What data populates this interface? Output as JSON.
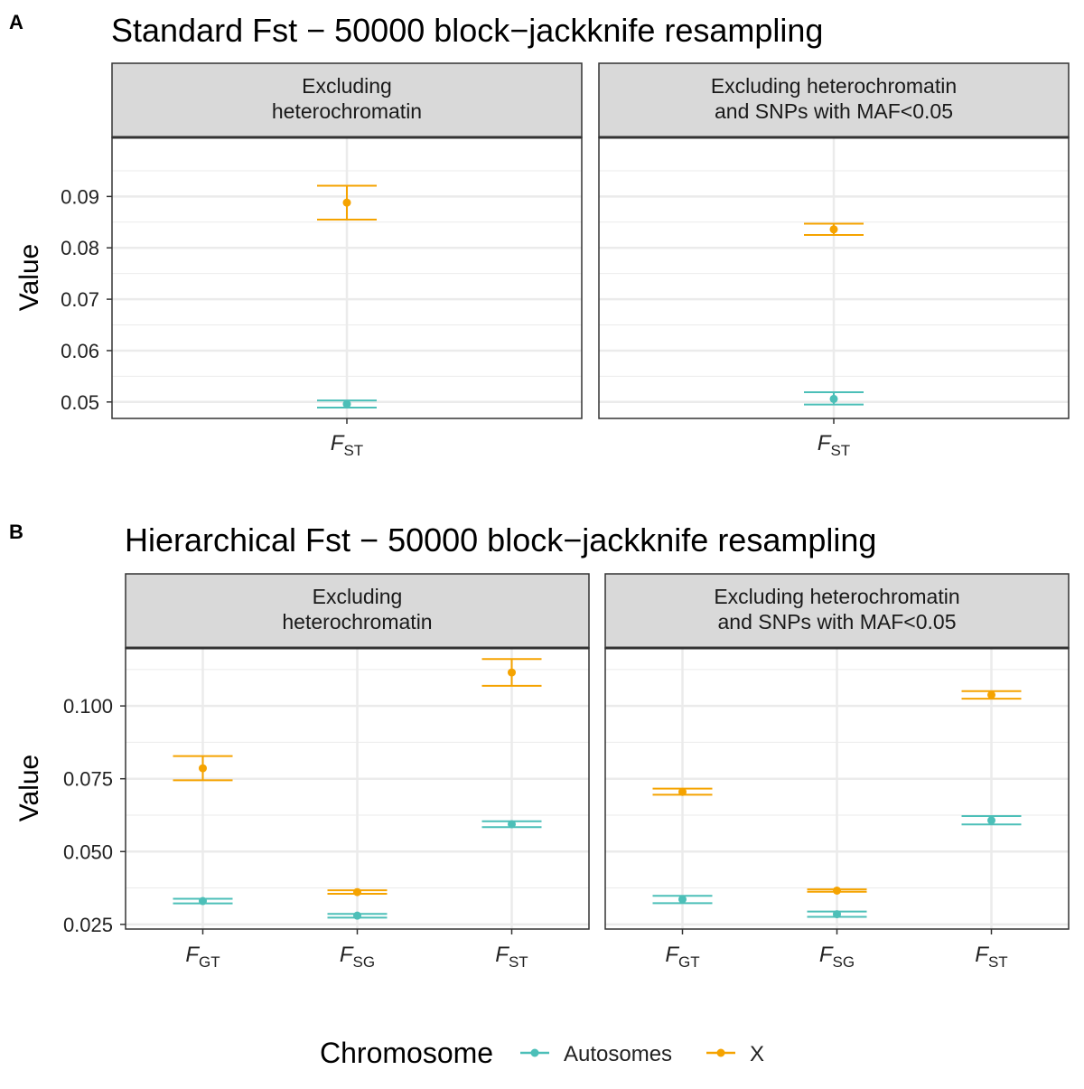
{
  "colors": {
    "autosomes": "#4cbfb8",
    "x": "#f5a300",
    "strip_bg": "#d9d9d9",
    "grid": "#ebebeb",
    "frame": "#333333"
  },
  "panels": [
    {
      "letter": "A",
      "title": "Standard Fst − 50000 block−jackknife resampling"
    },
    {
      "letter": "B",
      "title": "Hierarchical Fst − 50000 block−jackknife resampling"
    }
  ],
  "chart_data": [
    {
      "type": "scatter",
      "panel": "A",
      "title": "Standard Fst − 50000 block−jackknife resampling",
      "ylabel": "Value",
      "ylim": [
        0.0468,
        0.1015
      ],
      "yticks": [
        0.05,
        0.06,
        0.07,
        0.08,
        0.09
      ],
      "ytick_labels": [
        "0.05",
        "0.06",
        "0.07",
        "0.08",
        "0.09"
      ],
      "categories": [
        {
          "main": "F",
          "sub": "ST"
        }
      ],
      "facets": [
        {
          "label_lines": [
            "Excluding",
            "heterochromatin"
          ],
          "series": [
            {
              "name": "Autosomes",
              "values": [
                0.0496
              ],
              "lower": [
                0.0489
              ],
              "upper": [
                0.0503
              ]
            },
            {
              "name": "X",
              "values": [
                0.0888
              ],
              "lower": [
                0.0855
              ],
              "upper": [
                0.0921
              ]
            }
          ]
        },
        {
          "label_lines": [
            "Excluding heterochromatin",
            "and SNPs with MAF<0.05"
          ],
          "series": [
            {
              "name": "Autosomes",
              "values": [
                0.0506
              ],
              "lower": [
                0.0495
              ],
              "upper": [
                0.0519
              ]
            },
            {
              "name": "X",
              "values": [
                0.0836
              ],
              "lower": [
                0.0825
              ],
              "upper": [
                0.0847
              ]
            }
          ]
        }
      ]
    },
    {
      "type": "scatter",
      "panel": "B",
      "title": "Hierarchical Fst − 50000 block−jackknife resampling",
      "ylabel": "Value",
      "ylim": [
        0.0234,
        0.1199
      ],
      "yticks": [
        0.025,
        0.05,
        0.075,
        0.1
      ],
      "ytick_labels": [
        "0.025",
        "0.050",
        "0.075",
        "0.100"
      ],
      "categories": [
        {
          "main": "F",
          "sub": "GT"
        },
        {
          "main": "F",
          "sub": "SG"
        },
        {
          "main": "F",
          "sub": "ST"
        }
      ],
      "facets": [
        {
          "label_lines": [
            "Excluding",
            "heterochromatin"
          ],
          "series": [
            {
              "name": "Autosomes",
              "values": [
                0.033,
                0.028,
                0.0594
              ],
              "lower": [
                0.0322,
                0.0273,
                0.0584
              ],
              "upper": [
                0.0338,
                0.0286,
                0.0604
              ]
            },
            {
              "name": "X",
              "values": [
                0.0786,
                0.0361,
                0.1115
              ],
              "lower": [
                0.0745,
                0.0355,
                0.1069
              ],
              "upper": [
                0.0828,
                0.0367,
                0.1161
              ]
            }
          ]
        },
        {
          "label_lines": [
            "Excluding heterochromatin",
            "and SNPs with MAF<0.05"
          ],
          "series": [
            {
              "name": "Autosomes",
              "values": [
                0.0336,
                0.0285,
                0.0607
              ],
              "lower": [
                0.0323,
                0.0276,
                0.0593
              ],
              "upper": [
                0.0348,
                0.0294,
                0.0622
              ]
            },
            {
              "name": "X",
              "values": [
                0.0705,
                0.0366,
                0.1038
              ],
              "lower": [
                0.0695,
                0.0362,
                0.1025
              ],
              "upper": [
                0.0716,
                0.037,
                0.1051
              ]
            }
          ]
        }
      ]
    }
  ],
  "legend": {
    "title": "Chromosome",
    "position": "bottom",
    "items": [
      {
        "label": "Autosomes",
        "color": "#4cbfb8"
      },
      {
        "label": "X",
        "color": "#f5a300"
      }
    ]
  }
}
